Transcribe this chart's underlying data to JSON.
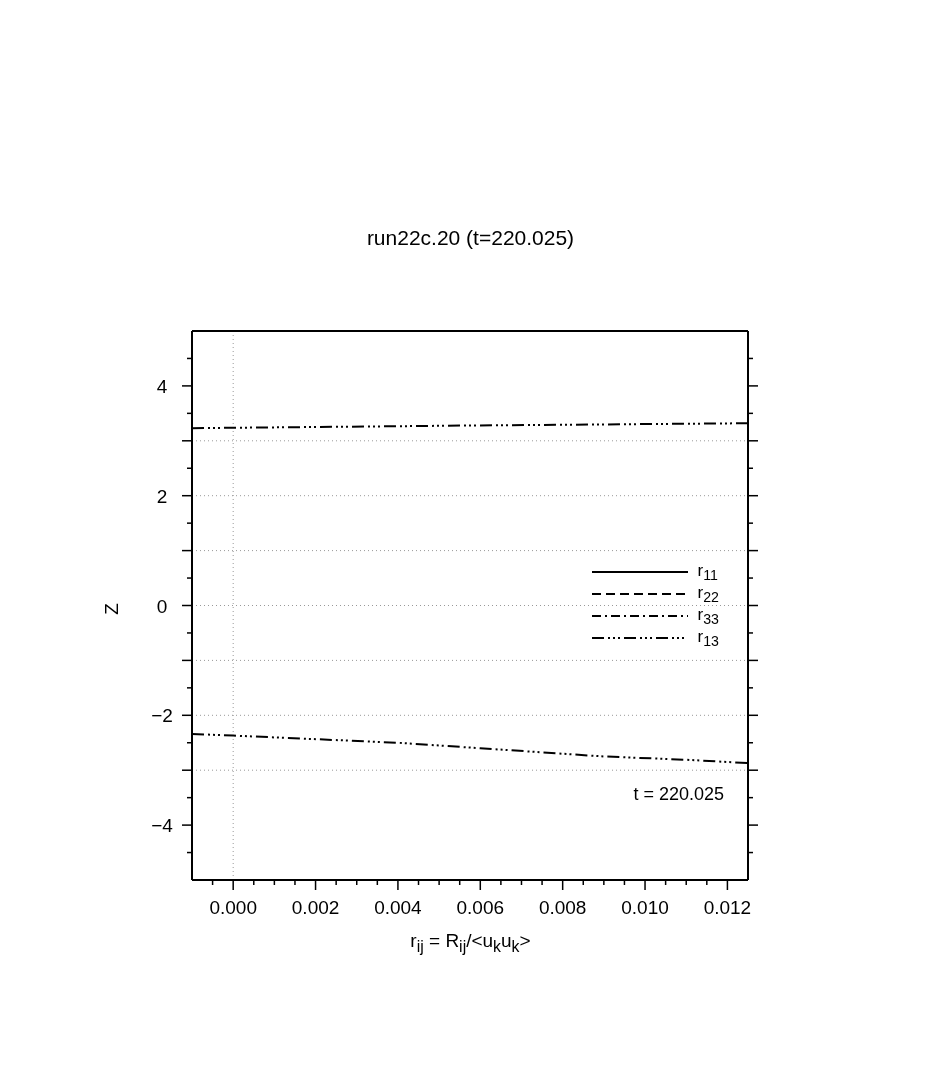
{
  "chart_data": {
    "type": "line",
    "title": "run22c.20 (t=220.025)",
    "xlabel": "r$_{ij}$ = R$_{ij}$/<u$_{k}$u$_{k}$>",
    "ylabel": "Z",
    "annotations": [
      "t = 220.025"
    ],
    "series": [
      {
        "name": "r$_{11}$",
        "color": "#000000",
        "line_style": "solid"
      },
      {
        "name": "r$_{22}$",
        "color": "#000000",
        "line_style": "dashed"
      },
      {
        "name": "r$_{33}$",
        "color": "#000000",
        "line_style": "dashdot"
      },
      {
        "name": "r$_{13}$",
        "color": "#000000",
        "line_style": "dashdotdotdot",
        "x": [
          -0.001,
          0.006,
          0.0125
        ],
        "values": [
          3.23,
          3.28,
          3.32
        ]
      },
      {
        "color": "#000000",
        "line_style": "dashdotdotdot",
        "x": [
          -0.001,
          0,
          0.004,
          0.006,
          0.009,
          0.011,
          0.0125
        ],
        "values": [
          -2.34,
          -2.37,
          -2.5,
          -2.6,
          -2.75,
          -2.81,
          -2.87
        ]
      }
    ],
    "xlim": [
      -0.001,
      0.0125
    ],
    "xticks": [
      {
        "value": -0.0005,
        "label": null
      },
      {
        "value": 0,
        "label": "0.000"
      },
      {
        "value": 0.0005,
        "label": null
      },
      {
        "value": 0.001,
        "label": null
      },
      {
        "value": 0.0015,
        "label": null
      },
      {
        "value": 0.002,
        "label": "0.002"
      },
      {
        "value": 0.0025,
        "label": null
      },
      {
        "value": 0.003,
        "label": null
      },
      {
        "value": 0.0035,
        "label": null
      },
      {
        "value": 0.004,
        "label": "0.004"
      },
      {
        "value": 0.0045,
        "label": null
      },
      {
        "value": 0.005,
        "label": null
      },
      {
        "value": 0.0055,
        "label": null
      },
      {
        "value": 0.006,
        "label": "0.006"
      },
      {
        "value": 0.0065,
        "label": null
      },
      {
        "value": 0.007,
        "label": null
      },
      {
        "value": 0.0075,
        "label": null
      },
      {
        "value": 0.008,
        "label": "0.008"
      },
      {
        "value": 0.0085,
        "label": null
      },
      {
        "value": 0.009,
        "label": null
      },
      {
        "value": 0.0095,
        "label": null
      },
      {
        "value": 0.01,
        "label": "0.010"
      },
      {
        "value": 0.0105,
        "label": null
      },
      {
        "value": 0.011,
        "label": null
      },
      {
        "value": 0.0115,
        "label": null
      },
      {
        "value": 0.012,
        "label": "0.012"
      }
    ],
    "ylim": [
      -5,
      5
    ],
    "yticks": [
      {
        "value": -4.5,
        "label": null
      },
      {
        "value": -4,
        "label": "−4"
      },
      {
        "value": -3.5,
        "label": null
      },
      {
        "value": -3,
        "label": null
      },
      {
        "value": -2.5,
        "label": null
      },
      {
        "value": -2,
        "label": "−2"
      },
      {
        "value": -1.5,
        "label": null
      },
      {
        "value": -1,
        "label": null
      },
      {
        "value": -0.5,
        "label": null
      },
      {
        "value": 0,
        "label": "0"
      },
      {
        "value": 0.5,
        "label": null
      },
      {
        "value": 1,
        "label": null
      },
      {
        "value": 1.5,
        "label": null
      },
      {
        "value": 2,
        "label": "2"
      },
      {
        "value": 2.5,
        "label": null
      },
      {
        "value": 3,
        "label": null
      },
      {
        "value": 3.5,
        "label": null
      },
      {
        "value": 4,
        "label": "4"
      },
      {
        "value": 4.5,
        "label": null
      }
    ],
    "ref_lines": [
      {
        "axis": "x",
        "value": 0,
        "color": "#999999",
        "line_style": "dotted"
      },
      {
        "axis": "y",
        "value": -3,
        "color": "#999999",
        "line_style": "dotted"
      },
      {
        "axis": "y",
        "value": -2,
        "color": "#999999",
        "line_style": "dotted"
      },
      {
        "axis": "y",
        "value": -1,
        "color": "#999999",
        "line_style": "dotted"
      },
      {
        "axis": "y",
        "value": 0,
        "color": "#999999",
        "line_style": "dotted"
      },
      {
        "axis": "y",
        "value": 1,
        "color": "#999999",
        "line_style": "dotted"
      },
      {
        "axis": "y",
        "value": 2,
        "color": "#999999",
        "line_style": "dotted"
      },
      {
        "axis": "y",
        "value": 3,
        "color": "#999999",
        "line_style": "dotted"
      }
    ],
    "grid": false,
    "legend": "right",
    "marker": "none"
  }
}
